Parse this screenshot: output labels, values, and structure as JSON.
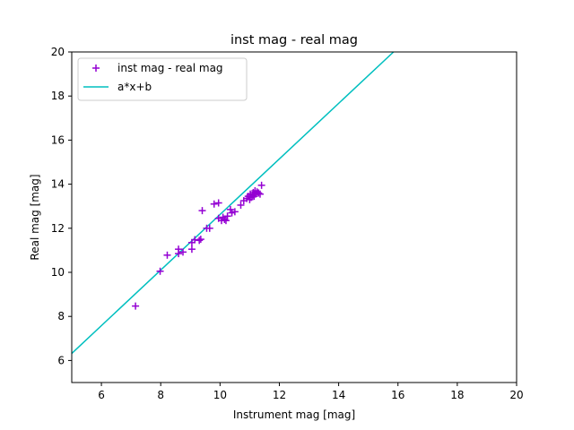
{
  "chart_data": {
    "type": "scatter",
    "title": "inst mag - real mag",
    "xlabel": "Instrument mag [mag]",
    "ylabel": "Real mag [mag]",
    "xlim": [
      5,
      20
    ],
    "ylim": [
      5,
      20
    ],
    "xticks": [
      6,
      8,
      10,
      12,
      14,
      16,
      18,
      20
    ],
    "yticks": [
      6,
      8,
      10,
      12,
      14,
      16,
      18,
      20
    ],
    "grid": false,
    "legend_placement": "top-left",
    "series": [
      {
        "name": "inst mag - real mag",
        "kind": "scatter",
        "marker": "plus",
        "color": "#9400d3",
        "points": [
          [
            7.15,
            8.47
          ],
          [
            7.98,
            10.05
          ],
          [
            8.22,
            10.78
          ],
          [
            8.6,
            11.05
          ],
          [
            8.6,
            10.85
          ],
          [
            8.75,
            10.92
          ],
          [
            9.05,
            11.05
          ],
          [
            9.05,
            11.35
          ],
          [
            9.15,
            11.48
          ],
          [
            9.3,
            11.45
          ],
          [
            9.35,
            11.5
          ],
          [
            9.4,
            12.8
          ],
          [
            9.55,
            12.0
          ],
          [
            9.65,
            12.0
          ],
          [
            9.8,
            13.1
          ],
          [
            9.95,
            13.15
          ],
          [
            9.95,
            12.45
          ],
          [
            10.05,
            12.35
          ],
          [
            10.1,
            12.5
          ],
          [
            10.15,
            12.4
          ],
          [
            10.2,
            12.35
          ],
          [
            10.25,
            12.55
          ],
          [
            10.35,
            12.85
          ],
          [
            10.4,
            12.7
          ],
          [
            10.5,
            12.75
          ],
          [
            10.7,
            13.05
          ],
          [
            10.8,
            13.25
          ],
          [
            10.9,
            13.35
          ],
          [
            10.95,
            13.45
          ],
          [
            11.0,
            13.3
          ],
          [
            11.02,
            13.55
          ],
          [
            11.05,
            13.4
          ],
          [
            11.1,
            13.5
          ],
          [
            11.12,
            13.62
          ],
          [
            11.15,
            13.45
          ],
          [
            11.18,
            13.7
          ],
          [
            11.2,
            13.55
          ],
          [
            11.25,
            13.65
          ],
          [
            11.3,
            13.6
          ],
          [
            11.35,
            13.55
          ],
          [
            11.4,
            13.95
          ]
        ]
      },
      {
        "name": "a*x+b",
        "kind": "line",
        "color": "#00bfbf",
        "points": [
          [
            5.0,
            6.32
          ],
          [
            15.85,
            20.0
          ]
        ]
      }
    ]
  }
}
